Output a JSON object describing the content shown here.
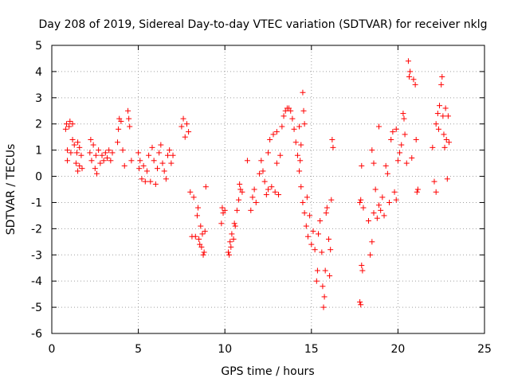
{
  "chart_data": {
    "type": "scatter",
    "title": "Day 208 of 2019, Sidereal Day-to-day VTEC variation (SDTVAR) for receiver nklg",
    "xlabel": "GPS time / hours",
    "ylabel": "SDTVAR / TECUs",
    "xlim": [
      0,
      25
    ],
    "ylim": [
      -6,
      5
    ],
    "xticks": [
      "0",
      "5",
      "10",
      "15",
      "20",
      "25"
    ],
    "yticks": [
      "-6",
      "-5",
      "-4",
      "-3",
      "-2",
      "-1",
      "0",
      "1",
      "2",
      "3",
      "4",
      "5"
    ],
    "grid": true,
    "marker": "+",
    "color": "#ff0000",
    "series": [
      {
        "name": "SDTVAR",
        "points": [
          [
            0.8,
            1.8
          ],
          [
            0.85,
            2.0
          ],
          [
            0.9,
            1.0
          ],
          [
            0.9,
            0.6
          ],
          [
            1.0,
            1.9
          ],
          [
            1.05,
            2.1
          ],
          [
            1.1,
            0.9
          ],
          [
            1.2,
            2.0
          ],
          [
            1.2,
            1.4
          ],
          [
            1.3,
            1.2
          ],
          [
            1.4,
            0.5
          ],
          [
            1.45,
            0.9
          ],
          [
            1.5,
            1.3
          ],
          [
            1.5,
            0.2
          ],
          [
            1.6,
            1.1
          ],
          [
            1.6,
            0.4
          ],
          [
            1.7,
            0.8
          ],
          [
            1.75,
            0.3
          ],
          [
            2.2,
            0.9
          ],
          [
            2.25,
            1.4
          ],
          [
            2.3,
            0.6
          ],
          [
            2.4,
            1.2
          ],
          [
            2.5,
            0.3
          ],
          [
            2.55,
            0.8
          ],
          [
            2.6,
            0.1
          ],
          [
            2.7,
            1.0
          ],
          [
            2.8,
            0.5
          ],
          [
            2.9,
            0.8
          ],
          [
            3.0,
            0.6
          ],
          [
            3.1,
            0.9
          ],
          [
            3.2,
            0.7
          ],
          [
            3.3,
            1.0
          ],
          [
            3.4,
            0.6
          ],
          [
            3.5,
            0.9
          ],
          [
            3.8,
            1.3
          ],
          [
            3.85,
            1.8
          ],
          [
            3.9,
            2.2
          ],
          [
            4.0,
            2.1
          ],
          [
            4.1,
            1.0
          ],
          [
            4.2,
            0.4
          ],
          [
            4.4,
            2.5
          ],
          [
            4.45,
            2.2
          ],
          [
            4.5,
            1.9
          ],
          [
            4.6,
            0.6
          ],
          [
            5.0,
            0.9
          ],
          [
            5.05,
            0.3
          ],
          [
            5.1,
            0.6
          ],
          [
            5.2,
            -0.1
          ],
          [
            5.3,
            0.4
          ],
          [
            5.4,
            -0.2
          ],
          [
            5.5,
            0.2
          ],
          [
            5.6,
            0.8
          ],
          [
            5.7,
            -0.2
          ],
          [
            5.8,
            1.1
          ],
          [
            5.9,
            0.6
          ],
          [
            6.0,
            -0.3
          ],
          [
            6.1,
            0.3
          ],
          [
            6.2,
            0.9
          ],
          [
            6.3,
            1.2
          ],
          [
            6.4,
            0.5
          ],
          [
            6.5,
            0.2
          ],
          [
            6.6,
            -0.1
          ],
          [
            6.7,
            0.8
          ],
          [
            6.8,
            1.0
          ],
          [
            6.9,
            0.5
          ],
          [
            7.0,
            0.8
          ],
          [
            7.5,
            1.9
          ],
          [
            7.6,
            2.2
          ],
          [
            7.7,
            1.5
          ],
          [
            7.8,
            2.0
          ],
          [
            7.9,
            1.7
          ],
          [
            8.0,
            -0.6
          ],
          [
            8.1,
            -2.3
          ],
          [
            8.2,
            -0.8
          ],
          [
            8.3,
            -2.3
          ],
          [
            8.4,
            -1.5
          ],
          [
            8.45,
            -1.2
          ],
          [
            8.5,
            -2.4
          ],
          [
            8.55,
            -2.6
          ],
          [
            8.6,
            -1.9
          ],
          [
            8.65,
            -2.7
          ],
          [
            8.7,
            -2.2
          ],
          [
            8.75,
            -3.0
          ],
          [
            8.8,
            -2.9
          ],
          [
            8.85,
            -2.1
          ],
          [
            8.9,
            -0.4
          ],
          [
            9.8,
            -1.8
          ],
          [
            9.85,
            -1.2
          ],
          [
            9.9,
            -1.4
          ],
          [
            10.0,
            -1.3
          ],
          [
            10.2,
            -2.9
          ],
          [
            10.25,
            -3.0
          ],
          [
            10.3,
            -2.5
          ],
          [
            10.35,
            -2.7
          ],
          [
            10.4,
            -2.2
          ],
          [
            10.5,
            -2.4
          ],
          [
            10.55,
            -1.8
          ],
          [
            10.6,
            -1.9
          ],
          [
            10.7,
            -1.3
          ],
          [
            10.8,
            -0.9
          ],
          [
            10.85,
            -0.3
          ],
          [
            10.9,
            -0.5
          ],
          [
            11.0,
            -0.6
          ],
          [
            11.3,
            0.6
          ],
          [
            11.5,
            -1.3
          ],
          [
            11.6,
            -0.8
          ],
          [
            11.7,
            -0.5
          ],
          [
            11.8,
            -1.0
          ],
          [
            12.0,
            0.1
          ],
          [
            12.1,
            0.6
          ],
          [
            12.2,
            0.2
          ],
          [
            12.3,
            -0.2
          ],
          [
            12.4,
            -0.7
          ],
          [
            12.5,
            -0.5
          ],
          [
            12.5,
            0.9
          ],
          [
            12.6,
            1.4
          ],
          [
            12.7,
            -0.4
          ],
          [
            12.8,
            1.6
          ],
          [
            12.9,
            -0.6
          ],
          [
            13.0,
            1.7
          ],
          [
            13.0,
            0.5
          ],
          [
            13.1,
            -0.7
          ],
          [
            13.2,
            0.8
          ],
          [
            13.3,
            1.9
          ],
          [
            13.4,
            2.3
          ],
          [
            13.5,
            2.5
          ],
          [
            13.6,
            2.6
          ],
          [
            13.7,
            2.6
          ],
          [
            13.8,
            2.5
          ],
          [
            13.9,
            2.2
          ],
          [
            14.0,
            1.8
          ],
          [
            14.1,
            1.3
          ],
          [
            14.2,
            0.8
          ],
          [
            14.3,
            0.2
          ],
          [
            14.4,
            -0.4
          ],
          [
            14.5,
            -1.0
          ],
          [
            14.3,
            1.9
          ],
          [
            14.35,
            0.6
          ],
          [
            14.4,
            1.2
          ],
          [
            14.5,
            3.2
          ],
          [
            14.55,
            2.5
          ],
          [
            14.6,
            2.0
          ],
          [
            14.6,
            -1.4
          ],
          [
            14.7,
            -1.9
          ],
          [
            14.75,
            -0.8
          ],
          [
            14.8,
            -2.3
          ],
          [
            14.9,
            -1.5
          ],
          [
            15.0,
            -2.6
          ],
          [
            15.1,
            -2.1
          ],
          [
            15.2,
            -2.8
          ],
          [
            15.3,
            -4.0
          ],
          [
            15.35,
            -3.6
          ],
          [
            15.4,
            -2.2
          ],
          [
            15.5,
            -1.7
          ],
          [
            15.6,
            -2.9
          ],
          [
            15.65,
            -4.2
          ],
          [
            15.7,
            -5.0
          ],
          [
            15.75,
            -4.6
          ],
          [
            15.8,
            -3.6
          ],
          [
            15.85,
            -1.4
          ],
          [
            15.9,
            -1.2
          ],
          [
            16.0,
            -2.4
          ],
          [
            16.05,
            -3.8
          ],
          [
            16.1,
            -2.8
          ],
          [
            16.15,
            -0.9
          ],
          [
            16.2,
            1.4
          ],
          [
            16.25,
            1.1
          ],
          [
            17.8,
            -4.8
          ],
          [
            17.85,
            -4.9
          ],
          [
            17.9,
            -3.4
          ],
          [
            17.95,
            -3.6
          ],
          [
            17.8,
            -1.0
          ],
          [
            17.85,
            -0.9
          ],
          [
            17.9,
            0.4
          ],
          [
            18.0,
            -1.2
          ],
          [
            18.3,
            -1.7
          ],
          [
            18.4,
            -3.0
          ],
          [
            18.5,
            -2.5
          ],
          [
            18.5,
            1.0
          ],
          [
            18.6,
            -1.4
          ],
          [
            18.6,
            0.5
          ],
          [
            18.7,
            -0.5
          ],
          [
            18.8,
            -1.6
          ],
          [
            18.9,
            -1.1
          ],
          [
            18.9,
            1.9
          ],
          [
            19.0,
            -1.3
          ],
          [
            19.1,
            -0.8
          ],
          [
            19.2,
            -1.5
          ],
          [
            19.3,
            0.4
          ],
          [
            19.4,
            0.1
          ],
          [
            19.5,
            -1.0
          ],
          [
            19.6,
            1.4
          ],
          [
            19.7,
            1.7
          ],
          [
            19.8,
            -0.6
          ],
          [
            19.9,
            -0.9
          ],
          [
            19.9,
            1.8
          ],
          [
            20.0,
            0.6
          ],
          [
            20.1,
            0.9
          ],
          [
            20.2,
            1.2
          ],
          [
            20.3,
            2.4
          ],
          [
            20.35,
            2.2
          ],
          [
            20.4,
            1.6
          ],
          [
            20.5,
            0.5
          ],
          [
            20.6,
            4.4
          ],
          [
            20.65,
            3.8
          ],
          [
            20.7,
            4.0
          ],
          [
            20.8,
            0.7
          ],
          [
            20.9,
            3.7
          ],
          [
            21.0,
            3.5
          ],
          [
            21.05,
            1.4
          ],
          [
            21.1,
            -0.6
          ],
          [
            21.15,
            -0.5
          ],
          [
            22.0,
            1.1
          ],
          [
            22.1,
            -0.2
          ],
          [
            22.2,
            -0.6
          ],
          [
            22.2,
            2.0
          ],
          [
            22.3,
            2.4
          ],
          [
            22.35,
            1.8
          ],
          [
            22.4,
            2.7
          ],
          [
            22.5,
            3.5
          ],
          [
            22.55,
            3.8
          ],
          [
            22.6,
            2.3
          ],
          [
            22.65,
            1.6
          ],
          [
            22.7,
            1.1
          ],
          [
            22.75,
            2.6
          ],
          [
            22.8,
            1.4
          ],
          [
            22.85,
            -0.1
          ],
          [
            22.9,
            2.3
          ],
          [
            22.95,
            1.3
          ]
        ]
      }
    ]
  }
}
